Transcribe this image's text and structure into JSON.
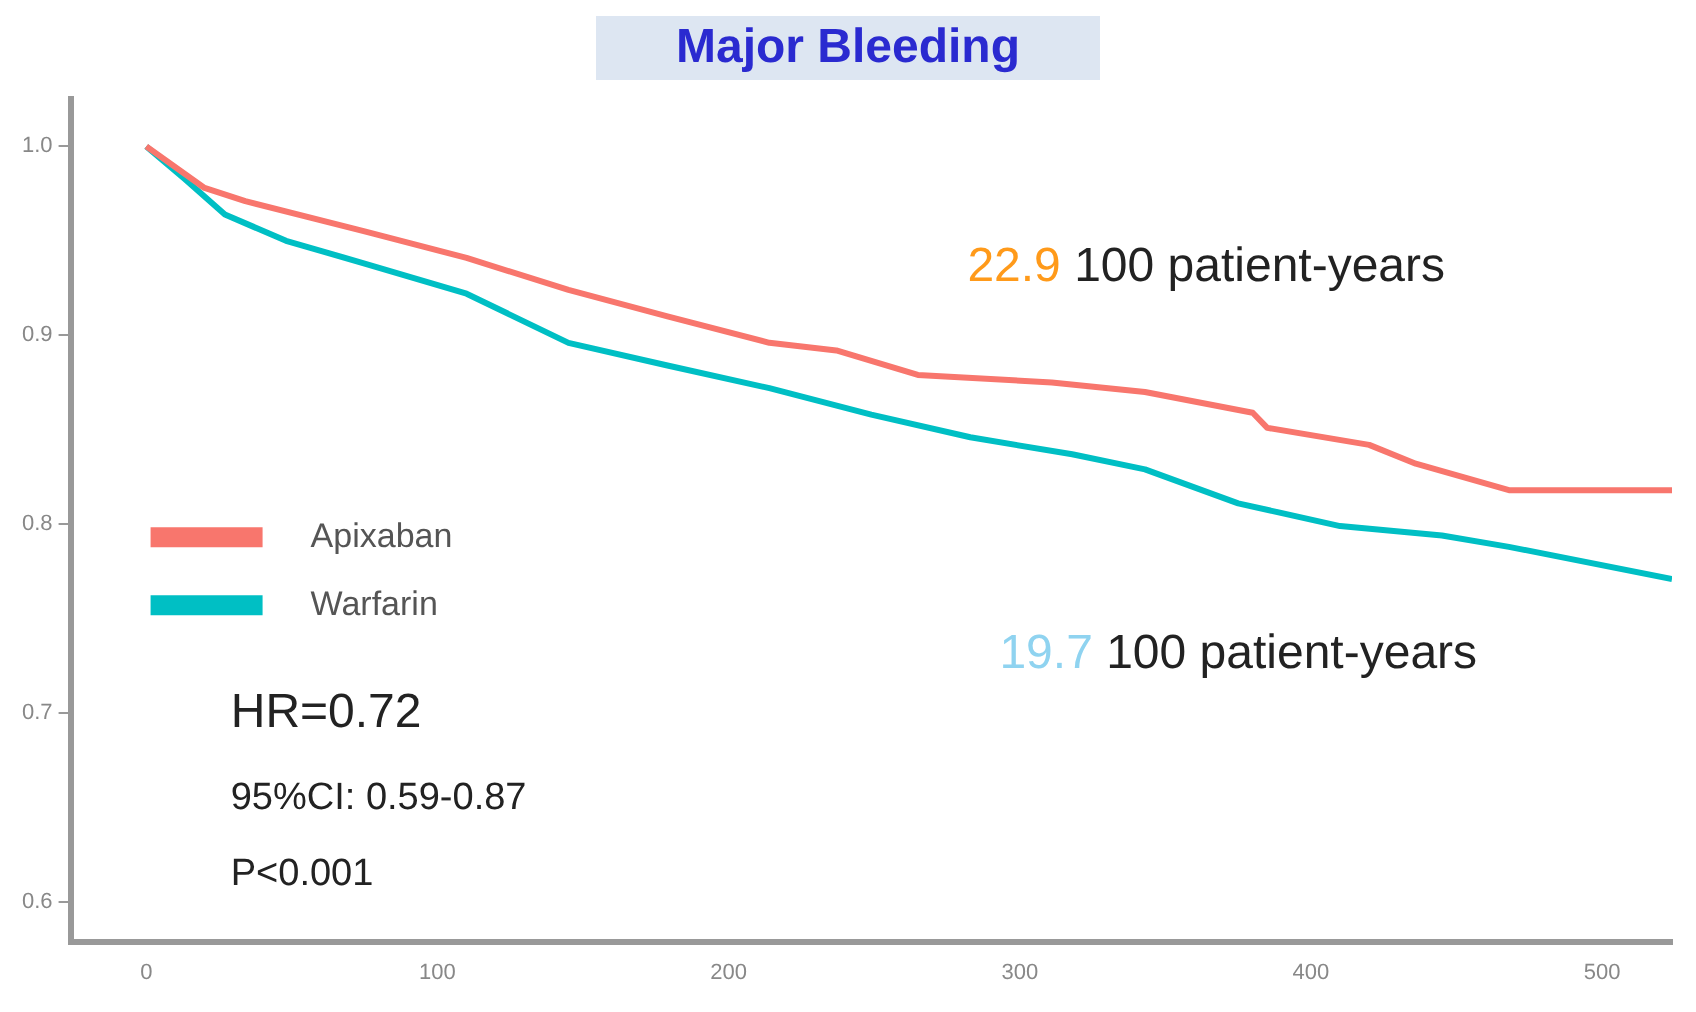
{
  "chart_data": {
    "type": "line",
    "title": "Major Bleeding",
    "x": [
      0,
      13,
      27,
      48,
      75,
      110,
      145,
      179,
      214,
      249,
      283,
      318,
      343,
      375,
      410,
      445,
      468,
      524
    ],
    "series": [
      {
        "name": "Apixaban",
        "color": "#f8766d",
        "x": [
          0,
          20,
          34,
          75,
          110,
          145,
          179,
          214,
          237,
          265,
          311,
          343,
          380,
          385,
          420,
          436,
          468,
          524
        ],
        "values": [
          1.0,
          0.978,
          0.971,
          0.955,
          0.941,
          0.924,
          0.91,
          0.896,
          0.892,
          0.879,
          0.875,
          0.87,
          0.859,
          0.851,
          0.842,
          0.832,
          0.818,
          0.818
        ]
      },
      {
        "name": "Warfarin",
        "color": "#00bfc4",
        "values": [
          1.0,
          0.983,
          0.964,
          0.95,
          0.938,
          0.922,
          0.896,
          0.884,
          0.872,
          0.858,
          0.846,
          0.837,
          0.829,
          0.811,
          0.799,
          0.794,
          0.788,
          0.771
        ]
      }
    ],
    "xlim": [
      -26,
      524
    ],
    "xticks": [
      0,
      100,
      200,
      300,
      400,
      500
    ],
    "ylim": [
      0.579,
      1.025
    ],
    "yticks": [
      {
        "value": 0.6,
        "label": "0.6"
      },
      {
        "value": 0.7,
        "label": "0.7"
      },
      {
        "value": 0.8,
        "label": "0.8"
      },
      {
        "value": 0.9,
        "label": "0.9"
      },
      {
        "value": 1,
        "label": "1.0"
      }
    ],
    "legend": "left",
    "grid": false,
    "annotations": [
      "22.9 100 patient-years",
      "19.7 100 patient-years",
      "HR=0.72",
      "95%CI: 0.59-0.87",
      "P<0.001"
    ]
  }
}
